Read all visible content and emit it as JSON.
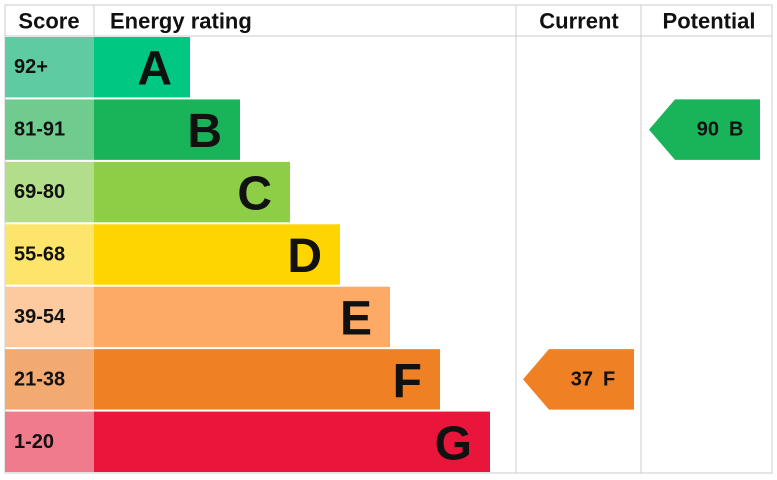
{
  "header": {
    "score": "Score",
    "rating": "Energy rating",
    "current": "Current",
    "potential": "Potential"
  },
  "bands": [
    {
      "score": "92+",
      "letter": "A",
      "color": "#00c781",
      "score_color": "#5fcba2"
    },
    {
      "score": "81-91",
      "letter": "B",
      "color": "#19b459",
      "score_color": "#6fcb8e"
    },
    {
      "score": "69-80",
      "letter": "C",
      "color": "#8dce46",
      "score_color": "#b2dd8a"
    },
    {
      "score": "55-68",
      "letter": "D",
      "color": "#ffd500",
      "score_color": "#fde56c"
    },
    {
      "score": "39-54",
      "letter": "E",
      "color": "#fcaa65",
      "score_color": "#fdcaa0"
    },
    {
      "score": "21-38",
      "letter": "F",
      "color": "#ef8023",
      "score_color": "#f3aa71"
    },
    {
      "score": "1-20",
      "letter": "G",
      "color": "#e9153b",
      "score_color": "#f07b8c"
    }
  ],
  "current": {
    "value": 37,
    "letter": "F"
  },
  "potential": {
    "value": 90,
    "letter": "B"
  }
}
